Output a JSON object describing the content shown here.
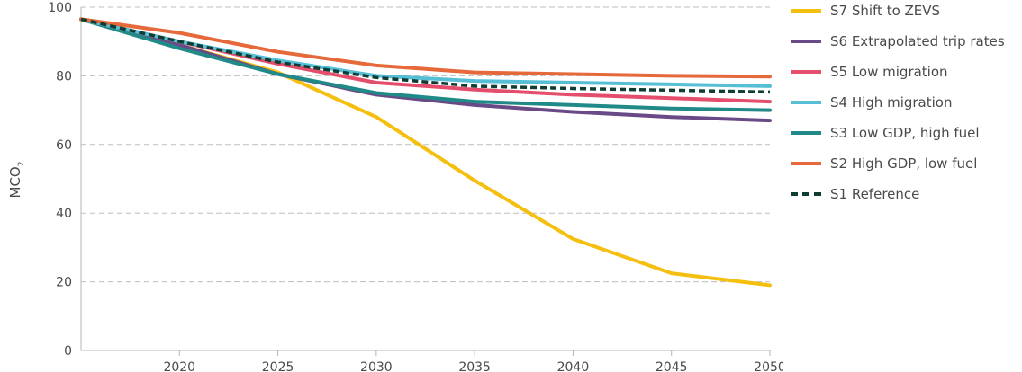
{
  "chart_data": {
    "type": "line",
    "title": "",
    "xlabel": "",
    "ylabel": "MCO",
    "ylabel_sub": "2",
    "xlim": [
      2015,
      2050
    ],
    "ylim": [
      0,
      100
    ],
    "x_ticks": [
      2020,
      2025,
      2030,
      2035,
      2040,
      2045,
      2050
    ],
    "y_ticks": [
      0,
      20,
      40,
      60,
      80,
      100
    ],
    "grid": "horizontal dashed",
    "legend_position": "right",
    "x": [
      2015,
      2020,
      2025,
      2030,
      2035,
      2040,
      2045,
      2050
    ],
    "series": [
      {
        "name": "S7 Shift to ZEVS",
        "color": "#f5bf0f",
        "style": "solid",
        "values": [
          96.5,
          89,
          81,
          68,
          49.5,
          32.5,
          22.5,
          19
        ]
      },
      {
        "name": "S6 Extrapolated trip rates",
        "color": "#6a4a86",
        "style": "solid",
        "values": [
          96.5,
          89,
          80.5,
          74.5,
          71.5,
          69.5,
          68,
          67
        ]
      },
      {
        "name": "S5 Low migration",
        "color": "#e44e6c",
        "style": "solid",
        "values": [
          96.5,
          90,
          83.5,
          78,
          76,
          74.5,
          73.5,
          72.5
        ]
      },
      {
        "name": "S4 High migration",
        "color": "#56bfd6",
        "style": "solid",
        "values": [
          96.5,
          90,
          84.5,
          80,
          78.5,
          78,
          77.5,
          77
        ]
      },
      {
        "name": "S3 Low GDP, high fuel",
        "color": "#1f8a87",
        "style": "solid",
        "values": [
          96.5,
          88,
          80.5,
          75,
          72.5,
          71.5,
          70.5,
          70
        ]
      },
      {
        "name": "S2 High GDP, low fuel",
        "color": "#e5693a",
        "style": "solid",
        "values": [
          96.5,
          92.5,
          87,
          83,
          81,
          80.5,
          80,
          79.8
        ]
      },
      {
        "name": "S1 Reference",
        "color": "#0e3d33",
        "style": "dashed",
        "values": [
          96.5,
          90,
          84,
          79.5,
          77,
          76.3,
          75.8,
          75.3
        ]
      }
    ]
  }
}
